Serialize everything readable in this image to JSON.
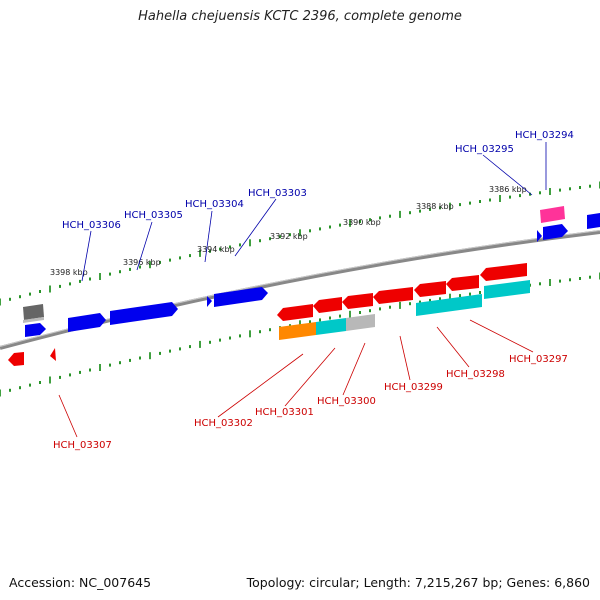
{
  "title": "Hahella chejuensis KCTC 2396, complete genome",
  "footer": {
    "accession": "Accession: NC_007645",
    "summary": "Topology: circular; Length: 7,215,267 bp; Genes: 6,860"
  },
  "colors": {
    "forward": "#0000ee",
    "reverse": "#ee0000",
    "teal": "#00c8c8",
    "orange": "#ff8800",
    "gray": "#b8b8b8",
    "dark_gray": "#666666",
    "pink": "#ff3399",
    "backbone": "#888888",
    "tick": "#118811",
    "forward_label": "#0000aa",
    "reverse_label": "#cc0000"
  },
  "scale_labels": [
    "3386 kbp",
    "3388 kbp",
    "3390 kbp",
    "3392 kbp",
    "3394 kbp",
    "3396 kbp",
    "3398 kbp"
  ],
  "forward_genes": [
    "HCH_03294",
    "HCH_03295",
    "HCH_03303",
    "HCH_03304",
    "HCH_03305",
    "HCH_03306"
  ],
  "reverse_genes": [
    "HCH_03297",
    "HCH_03298",
    "HCH_03299",
    "HCH_03300",
    "HCH_03301",
    "HCH_03302",
    "HCH_03307"
  ]
}
